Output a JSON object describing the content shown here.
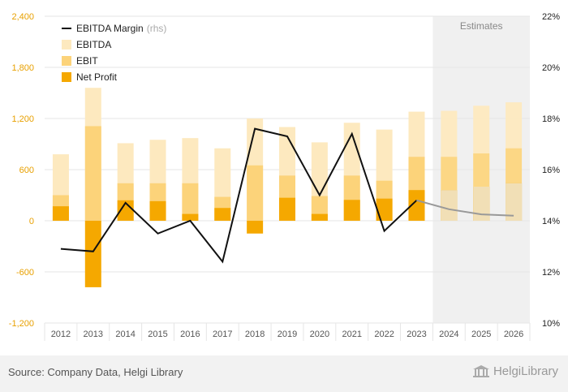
{
  "chart_data": {
    "type": "bar",
    "categories": [
      "2012",
      "2013",
      "2014",
      "2015",
      "2016",
      "2017",
      "2018",
      "2019",
      "2020",
      "2021",
      "2022",
      "2023",
      "2024",
      "2025",
      "2026"
    ],
    "series": [
      {
        "name": "EBITDA",
        "type": "bar",
        "axis": "left",
        "values": [
          780,
          1560,
          910,
          950,
          970,
          850,
          1200,
          1100,
          920,
          1150,
          1070,
          1280,
          1290,
          1350,
          1390
        ]
      },
      {
        "name": "EBIT",
        "type": "bar",
        "axis": "left",
        "values": [
          300,
          1110,
          440,
          440,
          440,
          280,
          650,
          530,
          290,
          530,
          470,
          750,
          750,
          790,
          850
        ]
      },
      {
        "name": "Net Profit",
        "type": "bar",
        "axis": "left",
        "values": [
          170,
          -780,
          240,
          230,
          80,
          150,
          -150,
          270,
          80,
          245,
          260,
          360,
          360,
          400,
          440
        ]
      },
      {
        "name": "EBITDA Margin",
        "name_suffix": "(rhs)",
        "type": "line",
        "axis": "right",
        "values": [
          12.9,
          12.8,
          14.7,
          13.5,
          14.0,
          12.4,
          17.6,
          17.3,
          15.0,
          17.4,
          13.6,
          14.8,
          14.45,
          14.25,
          14.2
        ]
      }
    ],
    "y_left": {
      "ylim": [
        -1200,
        2400
      ],
      "ticks": [
        -1200,
        -600,
        0,
        600,
        1200,
        1800,
        2400
      ],
      "tick_labels": [
        "-1,200",
        "-600",
        "0",
        "600",
        "1,200",
        "1,800",
        "2,400"
      ]
    },
    "y_right": {
      "ylim": [
        10,
        22
      ],
      "ticks": [
        10,
        12,
        14,
        16,
        18,
        20,
        22
      ],
      "tick_labels": [
        "10%",
        "12%",
        "14%",
        "16%",
        "18%",
        "20%",
        "22%"
      ]
    },
    "estimates_from": "2024",
    "estimates_label": "Estimates",
    "legend_position": "top-left",
    "grid": true,
    "colors": {
      "ebitda": "#fde9bf",
      "ebit": "#fcd37a",
      "net_profit": "#f5a800",
      "margin": "#111111",
      "margin_est": "#999999",
      "estimates_bg": "#f0f0f0"
    },
    "title": "",
    "xlabel": "",
    "ylabel": ""
  },
  "footer": {
    "source": "Source: Company Data, Helgi Library",
    "logo_text": "HelgiLibrary"
  }
}
